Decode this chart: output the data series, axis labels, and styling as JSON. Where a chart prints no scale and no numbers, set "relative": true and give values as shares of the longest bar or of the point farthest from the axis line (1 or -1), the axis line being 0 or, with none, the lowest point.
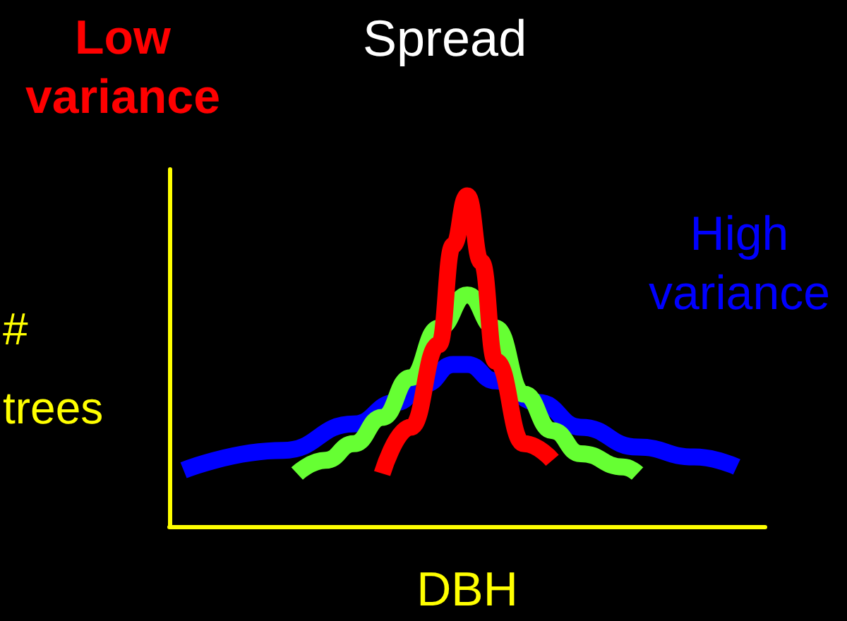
{
  "chart_data": {
    "type": "line",
    "title": "Spread",
    "xlabel": "DBH",
    "ylabel": "# trees",
    "relative": true,
    "grid": false,
    "legend": false,
    "marker": "none",
    "line_style": "solid",
    "categories": [
      null,
      null,
      null,
      null,
      null,
      null,
      null,
      null,
      null,
      null,
      null,
      null,
      null,
      null,
      null,
      null,
      null,
      null,
      null,
      null,
      null,
      null,
      null,
      null,
      null,
      null,
      null,
      null,
      null,
      null,
      null,
      null,
      null,
      null,
      null,
      null,
      null,
      null,
      null,
      null,
      null,
      null,
      null
    ],
    "series": [
      {
        "name": "Low variance",
        "color": "#ff0000",
        "values": [
          null,
          null,
          null,
          null,
          null,
          null,
          null,
          null,
          null,
          null,
          null,
          null,
          null,
          null,
          null,
          0.16,
          null,
          0.3,
          null,
          0.55,
          0.85,
          1,
          0.8,
          0.5,
          null,
          0.25,
          null,
          0.2,
          null,
          null,
          null,
          null,
          null,
          null,
          null,
          null,
          null,
          null,
          null,
          null,
          null,
          null,
          null
        ]
      },
      {
        "color": "#66ff33",
        "values": [
          null,
          null,
          null,
          null,
          null,
          null,
          null,
          null,
          null,
          0.16,
          null,
          0.2,
          null,
          0.25,
          null,
          0.33,
          null,
          0.45,
          null,
          0.6,
          null,
          0.7,
          null,
          0.6,
          null,
          0.4,
          null,
          0.29,
          null,
          0.22,
          null,
          null,
          0.18,
          0.16,
          null,
          null,
          null,
          null,
          null,
          null,
          null,
          null,
          null
        ]
      },
      {
        "name": "High variance",
        "color": "#0000ff",
        "values": [
          null,
          0.17,
          null,
          null,
          null,
          null,
          null,
          null,
          0.23,
          null,
          null,
          null,
          null,
          0.31,
          null,
          null,
          0.375,
          null,
          0.43,
          null,
          0.49,
          0.49,
          null,
          0.44,
          null,
          null,
          0.375,
          null,
          null,
          0.3,
          null,
          null,
          null,
          0.24,
          null,
          null,
          null,
          0.21,
          null,
          null,
          0.18,
          null,
          null
        ]
      }
    ]
  }
}
